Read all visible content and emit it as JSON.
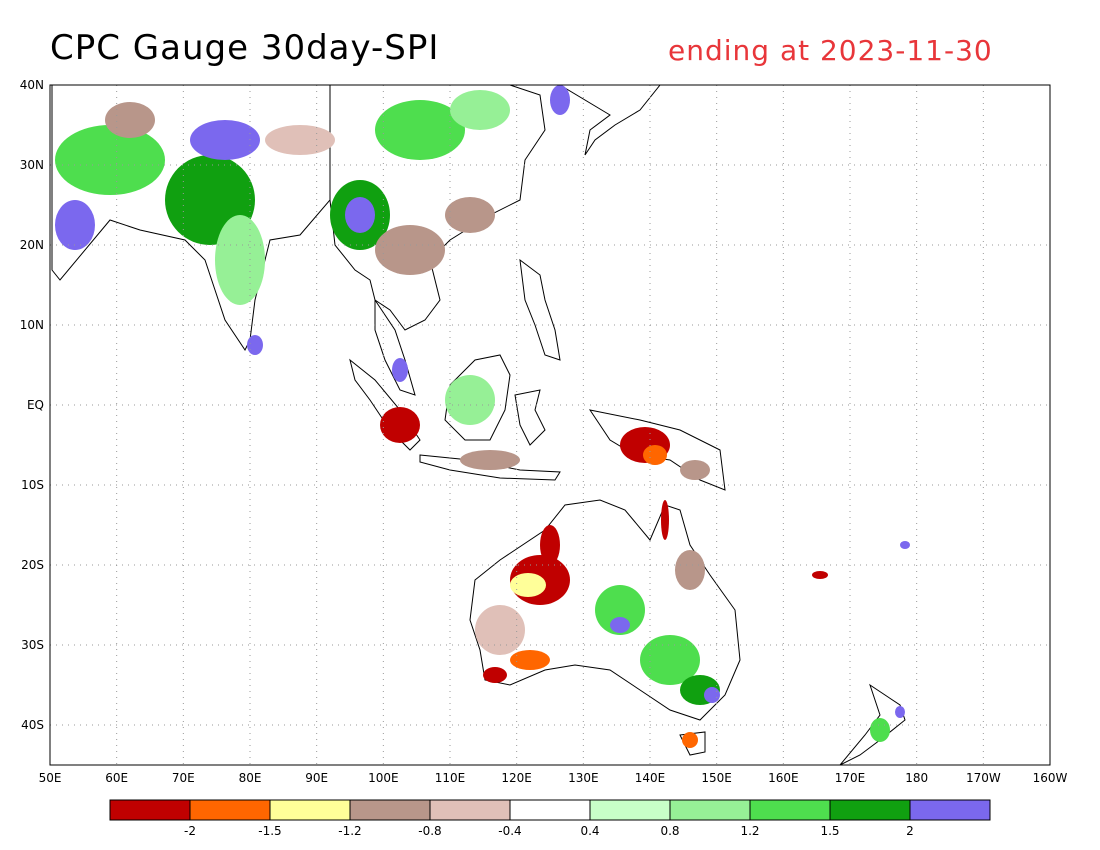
{
  "title": "CPC Gauge 30day-SPI",
  "subtitle": "ending at 2023-11-30",
  "map": {
    "lat_labels": [
      "40N",
      "30N",
      "20N",
      "10N",
      "EQ",
      "10S",
      "20S",
      "30S",
      "40S"
    ],
    "lon_labels": [
      "50E",
      "60E",
      "70E",
      "80E",
      "90E",
      "100E",
      "110E",
      "120E",
      "130E",
      "140E",
      "150E",
      "160E",
      "170E",
      "180",
      "170W",
      "160W"
    ]
  },
  "colorbar": {
    "colors": [
      "#c00000",
      "#ff6600",
      "#ffff99",
      "#b8968a",
      "#e0c0b8",
      "#ffffff",
      "#c8ffc8",
      "#96f096",
      "#4ede4e",
      "#10a010",
      "#7b68ee"
    ],
    "labels": [
      "-2",
      "-1.5",
      "-1.2",
      "-0.8",
      "-0.4",
      "0.4",
      "0.8",
      "1.2",
      "1.5",
      "2"
    ]
  }
}
